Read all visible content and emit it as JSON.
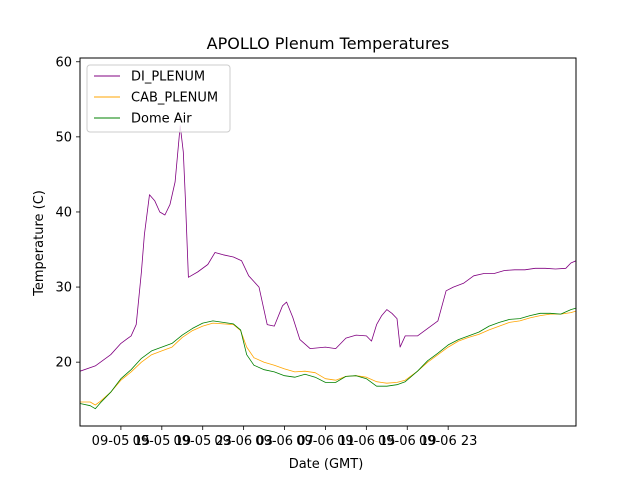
{
  "chart_data": {
    "type": "line",
    "title": "APOLLO Plenum Temperatures",
    "xlabel": "Date (GMT)",
    "ylabel": "Temperature (C)",
    "xlim": [
      11,
      59.5
    ],
    "ylim": [
      11.5,
      60.5
    ],
    "x_unit": "hours since 09-05 00:00 GMT",
    "xticks": [
      {
        "value": 15,
        "label": "09-05 15"
      },
      {
        "value": 19,
        "label": "09-05 19"
      },
      {
        "value": 23,
        "label": "09-05 23"
      },
      {
        "value": 27,
        "label": "09-06 03"
      },
      {
        "value": 31,
        "label": "09-06 07"
      },
      {
        "value": 35,
        "label": "09-06 11"
      },
      {
        "value": 39,
        "label": "09-06 15"
      },
      {
        "value": 43,
        "label": "09-06 19"
      },
      {
        "value": 47,
        "label": "09-06 23"
      }
    ],
    "yticks": [
      20,
      30,
      40,
      50,
      60
    ],
    "legend_position": "top-left",
    "series": [
      {
        "name": "DI_PLENUM",
        "color": "#800080",
        "points": [
          [
            11.0,
            18.8
          ],
          [
            12.5,
            19.5
          ],
          [
            14.0,
            21.0
          ],
          [
            15.0,
            22.5
          ],
          [
            16.0,
            23.5
          ],
          [
            16.5,
            25.0
          ],
          [
            17.0,
            32.0
          ],
          [
            17.3,
            37.0
          ],
          [
            17.8,
            42.3
          ],
          [
            18.3,
            41.5
          ],
          [
            18.8,
            40.0
          ],
          [
            19.3,
            39.6
          ],
          [
            19.8,
            41.0
          ],
          [
            20.3,
            44.0
          ],
          [
            20.8,
            51.5
          ],
          [
            21.1,
            48.0
          ],
          [
            21.3,
            42.0
          ],
          [
            21.6,
            31.3
          ],
          [
            22.5,
            32.0
          ],
          [
            23.5,
            33.0
          ],
          [
            24.2,
            34.6
          ],
          [
            25.0,
            34.3
          ],
          [
            26.0,
            34.0
          ],
          [
            26.8,
            33.5
          ],
          [
            27.5,
            31.5
          ],
          [
            28.5,
            30.0
          ],
          [
            29.3,
            25.0
          ],
          [
            30.0,
            24.8
          ],
          [
            30.8,
            27.5
          ],
          [
            31.2,
            28.0
          ],
          [
            31.8,
            26.0
          ],
          [
            32.5,
            23.0
          ],
          [
            33.5,
            21.8
          ],
          [
            35.0,
            22.0
          ],
          [
            36.0,
            21.8
          ],
          [
            37.0,
            23.2
          ],
          [
            38.0,
            23.6
          ],
          [
            39.0,
            23.5
          ],
          [
            39.5,
            22.8
          ],
          [
            40.0,
            25.0
          ],
          [
            40.5,
            26.2
          ],
          [
            41.0,
            27.0
          ],
          [
            41.5,
            26.5
          ],
          [
            42.0,
            25.8
          ],
          [
            42.3,
            22.0
          ],
          [
            42.8,
            23.5
          ],
          [
            44.0,
            23.5
          ],
          [
            45.0,
            24.5
          ],
          [
            46.0,
            25.5
          ],
          [
            46.8,
            29.5
          ],
          [
            47.5,
            30.0
          ],
          [
            48.5,
            30.5
          ],
          [
            49.5,
            31.5
          ],
          [
            50.5,
            31.8
          ],
          [
            51.5,
            31.8
          ],
          [
            52.5,
            32.2
          ],
          [
            53.5,
            32.3
          ],
          [
            54.5,
            32.3
          ],
          [
            55.5,
            32.5
          ],
          [
            56.5,
            32.5
          ],
          [
            57.5,
            32.4
          ],
          [
            58.5,
            32.5
          ],
          [
            59.0,
            33.2
          ],
          [
            59.5,
            33.5
          ]
        ]
      },
      {
        "name": "CAB_PLENUM",
        "color": "#ffa500",
        "points": [
          [
            11.0,
            14.7
          ],
          [
            12.0,
            14.7
          ],
          [
            12.5,
            14.3
          ],
          [
            13.0,
            14.8
          ],
          [
            14.0,
            16.0
          ],
          [
            15.0,
            17.6
          ],
          [
            16.0,
            18.7
          ],
          [
            17.0,
            20.0
          ],
          [
            18.0,
            21.0
          ],
          [
            19.0,
            21.5
          ],
          [
            20.0,
            22.0
          ],
          [
            21.0,
            23.3
          ],
          [
            22.0,
            24.2
          ],
          [
            23.0,
            24.8
          ],
          [
            24.0,
            25.2
          ],
          [
            25.0,
            25.1
          ],
          [
            26.0,
            25.0
          ],
          [
            26.7,
            24.2
          ],
          [
            27.3,
            22.0
          ],
          [
            28.0,
            20.6
          ],
          [
            29.0,
            20.0
          ],
          [
            30.0,
            19.6
          ],
          [
            31.0,
            19.1
          ],
          [
            32.0,
            18.7
          ],
          [
            33.0,
            18.8
          ],
          [
            34.0,
            18.6
          ],
          [
            35.0,
            17.8
          ],
          [
            36.0,
            17.6
          ],
          [
            37.0,
            18.1
          ],
          [
            38.0,
            18.2
          ],
          [
            39.0,
            18.0
          ],
          [
            40.0,
            17.4
          ],
          [
            41.0,
            17.2
          ],
          [
            42.0,
            17.3
          ],
          [
            42.8,
            17.6
          ],
          [
            44.0,
            18.8
          ],
          [
            45.0,
            20.0
          ],
          [
            46.0,
            21.0
          ],
          [
            47.0,
            22.0
          ],
          [
            48.0,
            22.8
          ],
          [
            49.0,
            23.3
          ],
          [
            50.0,
            23.7
          ],
          [
            51.0,
            24.3
          ],
          [
            52.0,
            24.8
          ],
          [
            53.0,
            25.3
          ],
          [
            54.0,
            25.5
          ],
          [
            55.0,
            25.9
          ],
          [
            56.0,
            26.2
          ],
          [
            57.0,
            26.4
          ],
          [
            58.0,
            26.4
          ],
          [
            59.0,
            26.6
          ],
          [
            59.5,
            26.8
          ]
        ]
      },
      {
        "name": "Dome Air",
        "color": "#008000",
        "points": [
          [
            11.0,
            14.5
          ],
          [
            12.0,
            14.2
          ],
          [
            12.5,
            13.8
          ],
          [
            13.0,
            14.6
          ],
          [
            14.0,
            16.0
          ],
          [
            15.0,
            17.8
          ],
          [
            16.0,
            19.0
          ],
          [
            17.0,
            20.5
          ],
          [
            18.0,
            21.5
          ],
          [
            19.0,
            22.0
          ],
          [
            20.0,
            22.5
          ],
          [
            21.0,
            23.6
          ],
          [
            22.0,
            24.5
          ],
          [
            23.0,
            25.2
          ],
          [
            24.0,
            25.5
          ],
          [
            25.0,
            25.3
          ],
          [
            26.0,
            25.1
          ],
          [
            26.7,
            24.3
          ],
          [
            27.3,
            21.0
          ],
          [
            28.0,
            19.6
          ],
          [
            29.0,
            19.0
          ],
          [
            30.0,
            18.7
          ],
          [
            31.0,
            18.2
          ],
          [
            32.0,
            18.0
          ],
          [
            33.0,
            18.4
          ],
          [
            34.0,
            18.0
          ],
          [
            35.0,
            17.3
          ],
          [
            36.0,
            17.3
          ],
          [
            37.0,
            18.1
          ],
          [
            38.0,
            18.2
          ],
          [
            39.0,
            17.8
          ],
          [
            40.0,
            16.8
          ],
          [
            41.0,
            16.8
          ],
          [
            42.0,
            17.0
          ],
          [
            42.8,
            17.4
          ],
          [
            44.0,
            18.8
          ],
          [
            45.0,
            20.2
          ],
          [
            46.0,
            21.2
          ],
          [
            47.0,
            22.3
          ],
          [
            48.0,
            23.0
          ],
          [
            49.0,
            23.5
          ],
          [
            50.0,
            24.0
          ],
          [
            51.0,
            24.8
          ],
          [
            52.0,
            25.3
          ],
          [
            53.0,
            25.7
          ],
          [
            54.0,
            25.8
          ],
          [
            55.0,
            26.2
          ],
          [
            56.0,
            26.5
          ],
          [
            57.0,
            26.5
          ],
          [
            58.0,
            26.4
          ],
          [
            59.0,
            27.0
          ],
          [
            59.5,
            27.2
          ]
        ]
      }
    ]
  }
}
